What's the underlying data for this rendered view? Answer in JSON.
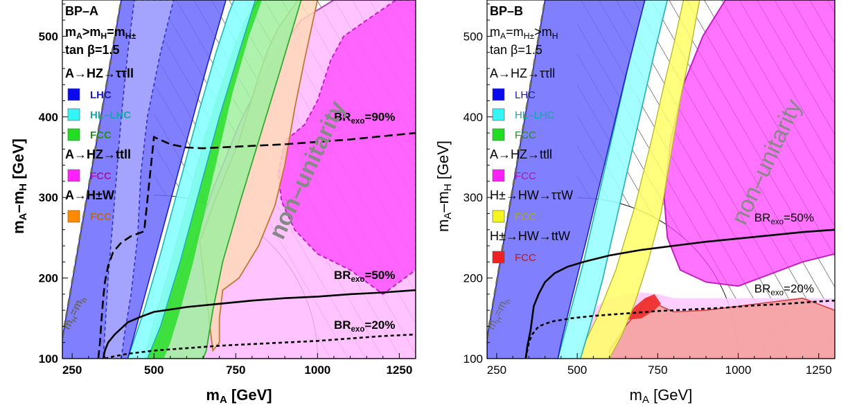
{
  "chart_data": [
    {
      "type": "area",
      "panel_label": "BP–A",
      "xlabel": "m",
      "xlabel_sub": "A",
      "xlabel_unit": " [GeV]",
      "ylabel": "m",
      "ylabel_sub1": "A",
      "ylabel_mid": "–m",
      "ylabel_sub2": "H",
      "ylabel_unit": " [GeV]",
      "xlim": [
        220,
        1300
      ],
      "ylim": [
        100,
        545
      ],
      "xticks": [
        250,
        500,
        750,
        1000,
        1250
      ],
      "yticks": [
        100,
        200,
        300,
        400,
        500
      ],
      "scenario_lines": [
        {
          "main": "m",
          "parts": [
            [
              "A",
              "sub"
            ],
            [
              ">m",
              "n"
            ],
            [
              "H",
              "sub"
            ],
            [
              "=m",
              "n"
            ],
            [
              "H±",
              "sub"
            ]
          ]
        },
        {
          "main": "tan β=1.5"
        }
      ],
      "legend": [
        {
          "type": "header",
          "text": "A→HZ→ττll"
        },
        {
          "type": "item",
          "text": "LHC",
          "color": "#0a0aee",
          "text_color": "#1a1aa8"
        },
        {
          "type": "item",
          "text": "HL–LHC",
          "color": "#33f5f5",
          "text_color": "#17a5a5"
        },
        {
          "type": "item",
          "text": "FCC",
          "color": "#22dd22",
          "text_color": "#1f8f1f"
        },
        {
          "type": "header",
          "text": "A→HZ→ttll"
        },
        {
          "type": "item",
          "text": "FCC",
          "color": "#ff22ff",
          "text_color": "#a51aa5"
        },
        {
          "type": "header",
          "text": "A→H±W"
        },
        {
          "type": "item",
          "text": "FCC",
          "color": "#ff8a00",
          "text_color": "#b86a1a"
        }
      ],
      "region_label": "non–unitarity",
      "diag_label": "m",
      "diag_label_parts": [
        [
          "H",
          "sub"
        ],
        [
          "=m",
          "n"
        ],
        [
          "h",
          "sub"
        ]
      ],
      "br_labels": [
        {
          "text": "BR",
          "sub": "exo",
          "value": "=90%",
          "x": 1050,
          "y": 395
        },
        {
          "text": "BR",
          "sub": "exo",
          "value": "=50%",
          "x": 1050,
          "y": 199
        },
        {
          "text": "BR",
          "sub": "exo",
          "value": "=20%",
          "x": 1050,
          "y": 137
        }
      ],
      "br_curves": [
        {
          "name": "BR90",
          "style": "dashed",
          "x": [
            330,
            335,
            340,
            345,
            350,
            360,
            375,
            400,
            430,
            470,
            500,
            550,
            600,
            650,
            700,
            800,
            900,
            1000,
            1100,
            1200,
            1300
          ],
          "y": [
            100,
            120,
            150,
            175,
            195,
            215,
            232,
            244,
            252,
            258,
            375,
            366,
            362,
            361,
            362,
            364,
            366,
            369,
            372,
            376,
            380
          ]
        },
        {
          "name": "BR50",
          "style": "solid",
          "x": [
            345,
            350,
            360,
            380,
            420,
            460,
            500,
            600,
            700,
            800,
            900,
            1000,
            1100,
            1200,
            1300
          ],
          "y": [
            100,
            110,
            120,
            130,
            145,
            152,
            158,
            164,
            168,
            172,
            175,
            177,
            180,
            182,
            185
          ]
        },
        {
          "name": "BR20",
          "style": "dotted",
          "x": [
            350,
            380,
            420,
            500,
            600,
            700,
            800,
            900,
            1000,
            1100,
            1200,
            1300
          ],
          "y": [
            100,
            103,
            106,
            110,
            113,
            116,
            118,
            120,
            122,
            125,
            128,
            130
          ]
        }
      ]
    },
    {
      "type": "area",
      "panel_label": "BP–B",
      "xlabel": "m",
      "xlabel_sub": "A",
      "xlabel_unit": " [GeV]",
      "ylabel": "m",
      "ylabel_sub1": "A",
      "ylabel_mid": "–m",
      "ylabel_sub2": "H",
      "ylabel_unit": " [GeV]",
      "xlim": [
        220,
        1300
      ],
      "ylim": [
        100,
        545
      ],
      "xticks": [
        250,
        500,
        750,
        1000,
        1250
      ],
      "yticks": [
        100,
        200,
        300,
        400,
        500
      ],
      "scenario_lines": [
        {
          "main": "m",
          "parts": [
            [
              "A",
              "sub"
            ],
            [
              "=m",
              "n"
            ],
            [
              "H±",
              "sub"
            ],
            [
              ">m",
              "n"
            ],
            [
              "H",
              "sub"
            ]
          ]
        },
        {
          "main": "tan β=1.5"
        }
      ],
      "legend": [
        {
          "type": "header",
          "text": "A→HZ→ττll"
        },
        {
          "type": "item",
          "text": "LHC",
          "color": "#0a0aee",
          "text_color": "#1a1aa8"
        },
        {
          "type": "item",
          "text": "HL–LHC",
          "color": "#33f5f5",
          "text_color": "#17a5a5"
        },
        {
          "type": "item",
          "text": "FCC",
          "color": "#22dd22",
          "text_color": "#1f8f1f"
        },
        {
          "type": "header",
          "text": "A→HZ→ttll"
        },
        {
          "type": "item",
          "text": "FCC",
          "color": "#ff22ff",
          "text_color": "#a51aa5"
        },
        {
          "type": "header",
          "text": "H±→HW→ττW"
        },
        {
          "type": "item",
          "text": "FCC",
          "color": "#f5f522",
          "text_color": "#a8a81a"
        },
        {
          "type": "header",
          "text": "H±→HW→ttW"
        },
        {
          "type": "item",
          "text": "FCC",
          "color": "#ee2222",
          "text_color": "#b01a1a"
        }
      ],
      "region_label": "non–unitarity",
      "diag_label": "m",
      "diag_label_parts": [
        [
          "H",
          "sub"
        ],
        [
          "=m",
          "n"
        ],
        [
          "h",
          "sub"
        ]
      ],
      "br_labels": [
        {
          "text": "BR",
          "sub": "exo",
          "value": "=50%",
          "x": 1050,
          "y": 270
        },
        {
          "text": "BR",
          "sub": "exo",
          "value": "=20%",
          "x": 1050,
          "y": 182
        }
      ],
      "br_curves": [
        {
          "name": "BR50",
          "style": "solid",
          "x": [
            340,
            345,
            350,
            355,
            360,
            365,
            380,
            400,
            430,
            470,
            520,
            600,
            700,
            800,
            900,
            1000,
            1100,
            1200,
            1300
          ],
          "y": [
            100,
            115,
            125,
            135,
            150,
            165,
            180,
            195,
            206,
            214,
            220,
            228,
            235,
            240,
            245,
            249,
            253,
            257,
            260
          ]
        },
        {
          "name": "BR20",
          "style": "dotted",
          "x": [
            340,
            345,
            350,
            360,
            380,
            420,
            480,
            550,
            650,
            750,
            850,
            950,
            1050,
            1150,
            1250,
            1300
          ],
          "y": [
            100,
            110,
            120,
            130,
            140,
            146,
            150,
            153,
            156,
            159,
            161,
            163,
            166,
            168,
            171,
            172
          ]
        }
      ]
    }
  ]
}
